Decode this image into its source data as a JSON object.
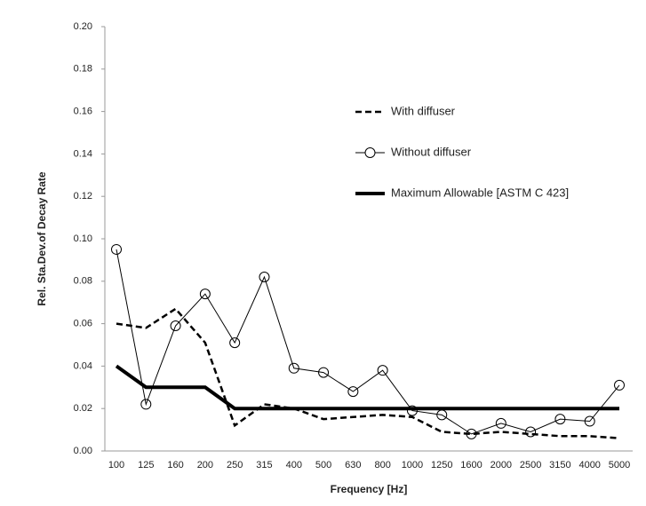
{
  "chart_data": {
    "type": "line",
    "xlabel": "Frequency [Hz]",
    "ylabel": "Rel. Sta.Dev.of Decay Rate",
    "categories": [
      "100",
      "125",
      "160",
      "200",
      "250",
      "315",
      "400",
      "500",
      "630",
      "800",
      "1000",
      "1250",
      "1600",
      "2000",
      "2500",
      "3150",
      "4000",
      "5000"
    ],
    "ylim": [
      0,
      0.2
    ],
    "yticks": [
      {
        "value": 0,
        "label": "0.00"
      },
      {
        "value": 0.02,
        "label": "0.02"
      },
      {
        "value": 0.04,
        "label": "0.04"
      },
      {
        "value": 0.06,
        "label": "0.06"
      },
      {
        "value": 0.08,
        "label": "0.08"
      },
      {
        "value": 0.1,
        "label": "0.10"
      },
      {
        "value": 0.12,
        "label": "0.12"
      },
      {
        "value": 0.14,
        "label": "0.14"
      },
      {
        "value": 0.16,
        "label": "0.16"
      },
      {
        "value": 0.18,
        "label": "0.18"
      },
      {
        "value": 0.2,
        "label": "0.20"
      }
    ],
    "grid": false,
    "legend": "right",
    "series": [
      {
        "name": "With diffuser",
        "color": "#000000",
        "dash": true,
        "width": 2.5,
        "values": [
          0.06,
          0.058,
          0.067,
          0.051,
          0.012,
          0.022,
          0.02,
          0.015,
          0.016,
          0.017,
          0.016,
          0.009,
          0.008,
          0.009,
          0.008,
          0.007,
          0.007,
          0.006
        ]
      },
      {
        "name": "Without diffuser",
        "color": "#000000",
        "marker": "circle",
        "width": 1,
        "values": [
          0.095,
          0.022,
          0.059,
          0.074,
          0.051,
          0.082,
          0.039,
          0.037,
          0.028,
          0.038,
          0.019,
          0.017,
          0.008,
          0.013,
          0.009,
          0.015,
          0.014,
          0.031
        ]
      },
      {
        "name": "Maximum Allowable [ASTM C 423]",
        "color": "#000000",
        "width": 4,
        "values": [
          0.04,
          0.03,
          0.03,
          0.03,
          0.02,
          0.02,
          0.02,
          0.02,
          0.02,
          0.02,
          0.02,
          0.02,
          0.02,
          0.02,
          0.02,
          0.02,
          0.02,
          0.02
        ]
      }
    ]
  }
}
